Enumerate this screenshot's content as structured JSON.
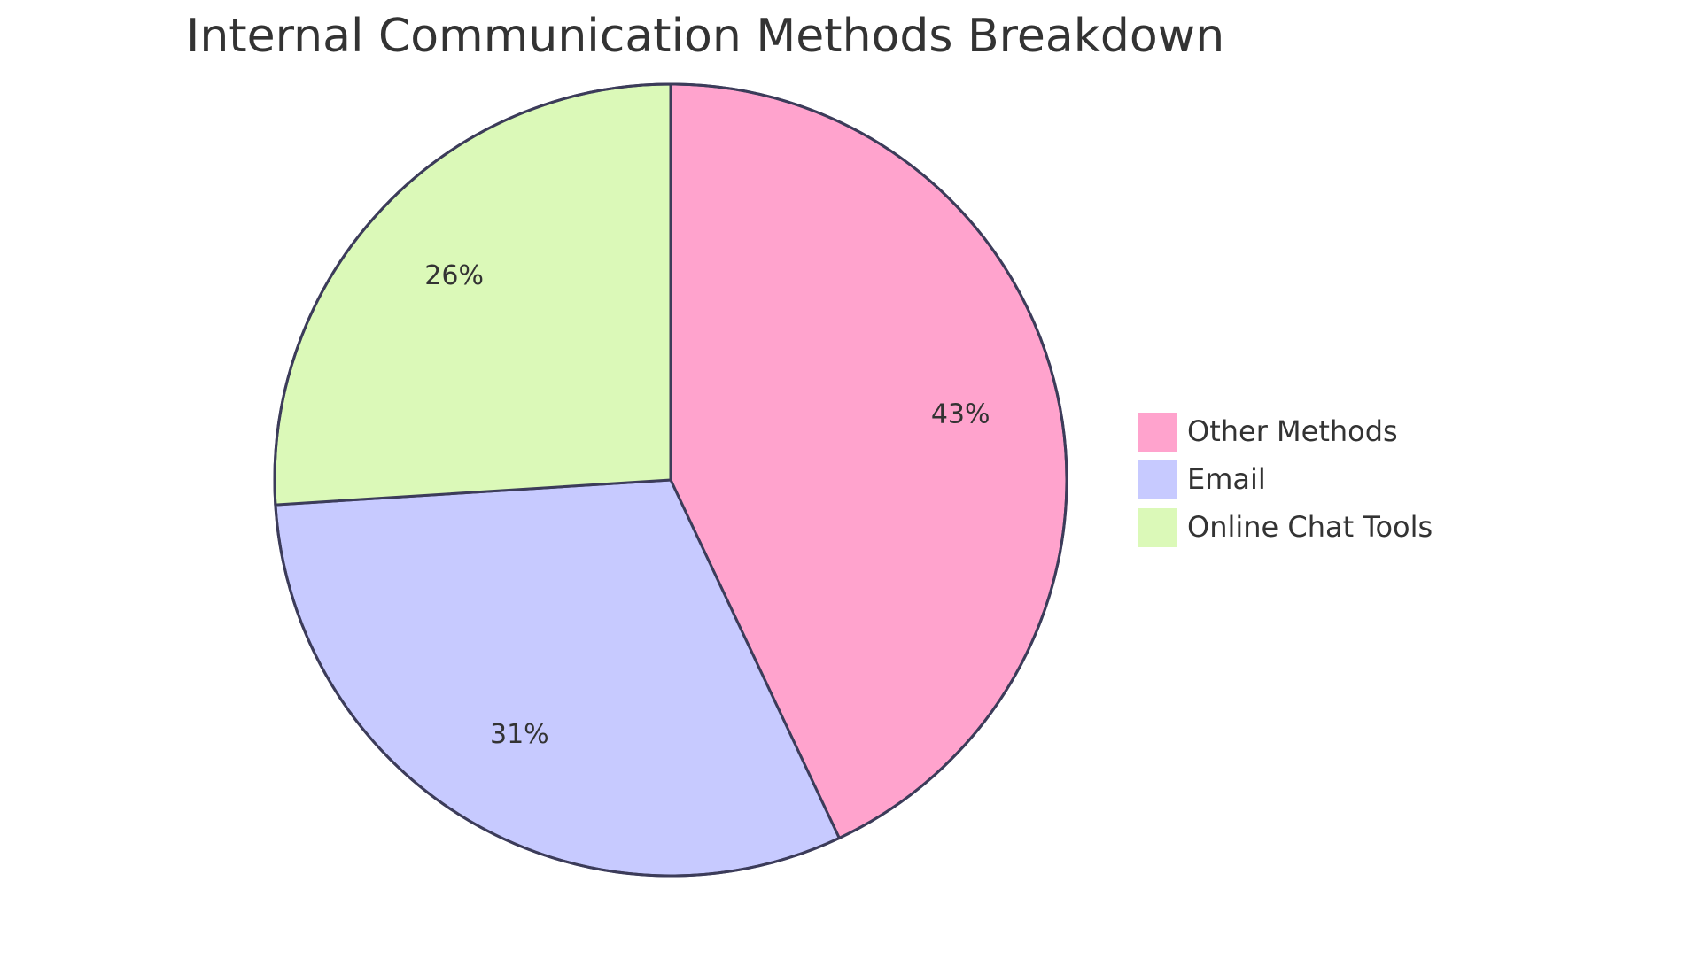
{
  "chart_data": {
    "type": "pie",
    "title": "Internal Communication Methods Breakdown",
    "slices": [
      {
        "label": "Other Methods",
        "value": 43,
        "display": "43%",
        "color": "#ffa3cd"
      },
      {
        "label": "Email",
        "value": 31,
        "display": "31%",
        "color": "#c7caff"
      },
      {
        "label": "Online Chat Tools",
        "value": 26,
        "display": "26%",
        "color": "#dbf9b8"
      }
    ],
    "legend_position": "right",
    "start_angle": "12 o'clock",
    "direction": "clockwise"
  }
}
